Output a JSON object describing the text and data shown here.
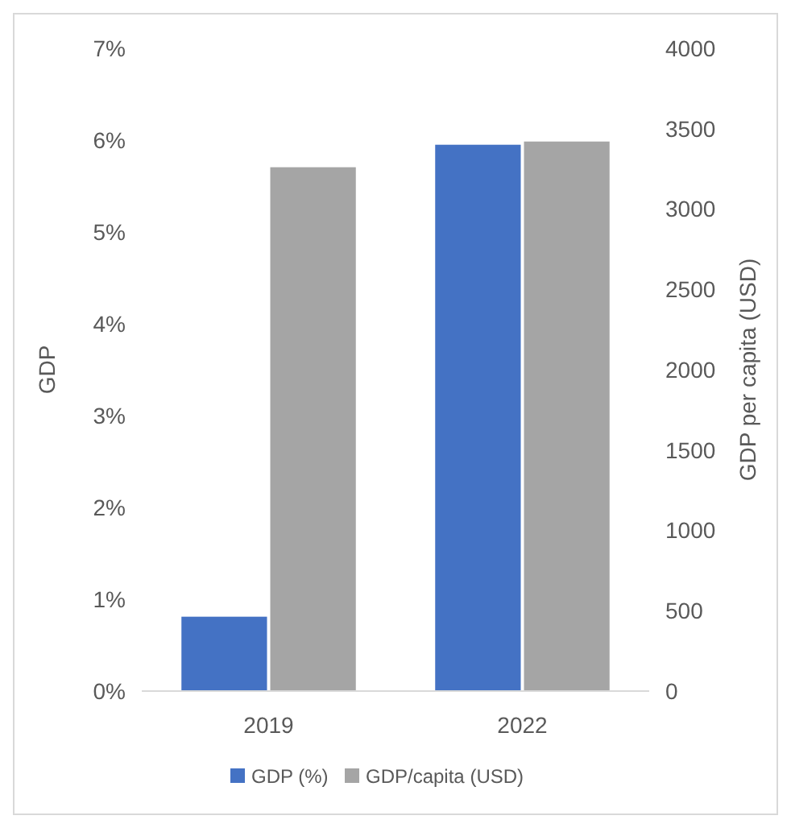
{
  "chart_data": {
    "type": "bar",
    "ylabel": "GDP",
    "y2label": "GDP per capita (USD)",
    "categories": [
      "2019",
      "2022"
    ],
    "series": [
      {
        "name": "GDP (%)",
        "color": "#4472c4",
        "values": [
          0.81,
          5.95
        ],
        "axis": "y"
      },
      {
        "name": "GDP/capita (USD)",
        "color": "#a5a5a5",
        "values": [
          3260,
          3420
        ],
        "axis": "y2"
      }
    ],
    "ylim": [
      0,
      7
    ],
    "yticks": [
      {
        "value": 0,
        "label": "0%"
      },
      {
        "value": 1,
        "label": "1%"
      },
      {
        "value": 2,
        "label": "2%"
      },
      {
        "value": 3,
        "label": "3%"
      },
      {
        "value": 4,
        "label": "4%"
      },
      {
        "value": 5,
        "label": "5%"
      },
      {
        "value": 6,
        "label": "6%"
      },
      {
        "value": 7,
        "label": "7%"
      }
    ],
    "y2lim": [
      0,
      4000
    ],
    "y2ticks": [
      0,
      500,
      1000,
      1500,
      2000,
      2500,
      3000,
      3500,
      4000
    ],
    "legend": "bottom",
    "grid": false
  }
}
